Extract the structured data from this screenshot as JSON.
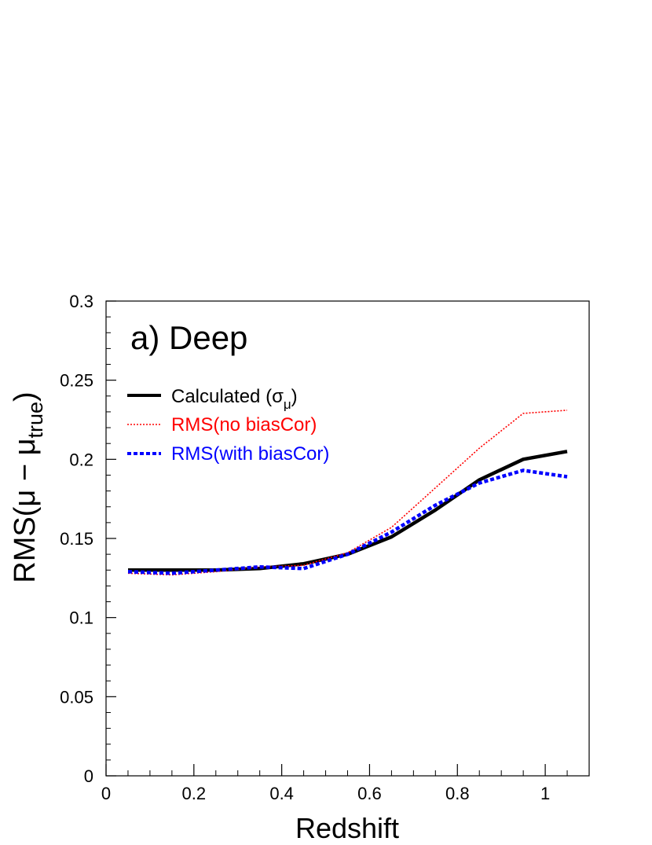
{
  "chart_data": {
    "type": "line",
    "title": "",
    "panel_label": "a) Deep",
    "xlabel": "Redshift",
    "ylabel_main": "RMS(μ − μ",
    "ylabel_sub": "true",
    "ylabel_close": ")",
    "xlim": [
      0,
      1.1
    ],
    "ylim": [
      0,
      0.3
    ],
    "xticks": [
      0,
      0.2,
      0.4,
      0.6,
      0.8,
      1
    ],
    "xtick_labels": [
      "0",
      "0.2",
      "0.4",
      "0.6",
      "0.8",
      "1"
    ],
    "yticks": [
      0,
      0.05,
      0.1,
      0.15,
      0.2,
      0.25,
      0.3
    ],
    "ytick_labels": [
      "0",
      "0.05",
      "0.1",
      "0.15",
      "0.2",
      "0.25",
      "0.3"
    ],
    "grid": false,
    "legend_position": "upper-left",
    "x": [
      0.05,
      0.15,
      0.25,
      0.35,
      0.45,
      0.55,
      0.65,
      0.75,
      0.85,
      0.95,
      1.05
    ],
    "series": [
      {
        "name": "Calculated (σ",
        "name_sub": "μ",
        "name_close": ")",
        "color": "#000000",
        "style": "solid",
        "values": [
          0.13,
          0.13,
          0.13,
          0.131,
          0.134,
          0.14,
          0.151,
          0.168,
          0.187,
          0.2,
          0.205
        ]
      },
      {
        "name": "RMS(no biasCor)",
        "color": "#ff0000",
        "style": "dotted",
        "values": [
          0.128,
          0.127,
          0.129,
          0.132,
          0.133,
          0.141,
          0.157,
          0.182,
          0.207,
          0.229,
          0.231
        ]
      },
      {
        "name": "RMS(with biasCor)",
        "color": "#0000ff",
        "style": "dashed",
        "values": [
          0.129,
          0.128,
          0.13,
          0.132,
          0.131,
          0.14,
          0.154,
          0.171,
          0.185,
          0.193,
          0.189
        ]
      }
    ]
  }
}
